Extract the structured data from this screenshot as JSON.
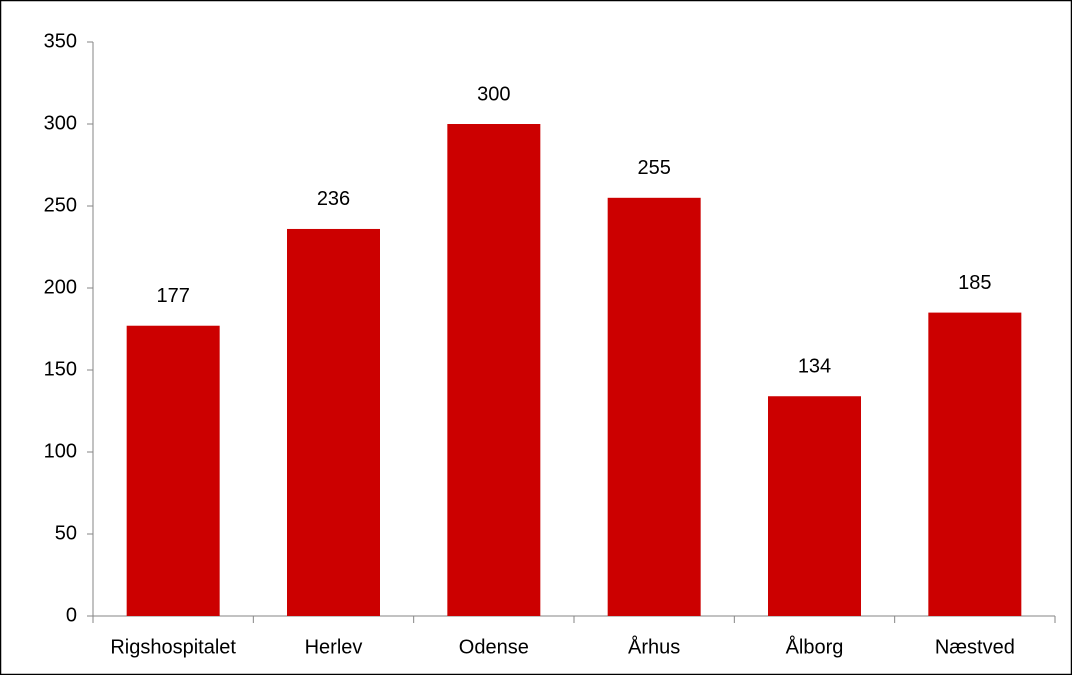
{
  "chart_data": {
    "type": "bar",
    "categories": [
      "Rigshospitalet",
      "Herlev",
      "Odense",
      "Århus",
      "Ålborg",
      "Næstved"
    ],
    "values": [
      177,
      236,
      300,
      255,
      134,
      185
    ],
    "color": "#cc0000",
    "ylim": [
      0,
      350
    ],
    "yticks": [
      0,
      50,
      100,
      150,
      200,
      250,
      300,
      350
    ],
    "grid": false
  }
}
